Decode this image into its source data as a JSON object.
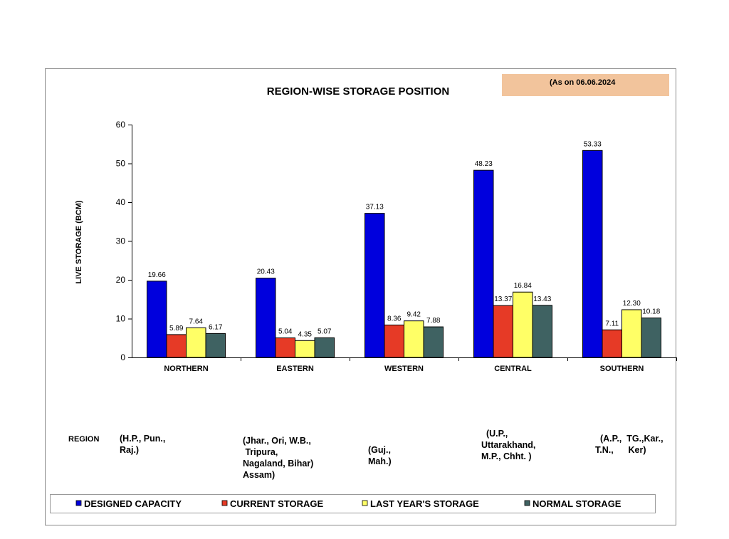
{
  "chart_data": {
    "type": "bar",
    "title": "REGION-WISE STORAGE POSITION",
    "date_note": "(As on 06.06.2024",
    "ylabel": "LIVE STORAGE (BCM)",
    "xlabel": "REGION",
    "ylim": [
      0,
      60
    ],
    "yticks": [
      "0",
      "10",
      "20",
      "30",
      "40",
      "50",
      "60"
    ],
    "grid": false,
    "legend_position": "bottom",
    "categories": [
      "NORTHERN",
      "EASTERN",
      "WESTERN",
      "CENTRAL",
      "SOUTHERN"
    ],
    "category_states": [
      [
        "(H.P., Pun.,",
        "Raj.)"
      ],
      [
        "(Jhar., Ori, W.B.,",
        " Tripura,",
        "Nagaland, Bihar)",
        "Assam)"
      ],
      [
        "(Guj.,",
        "Mah.)"
      ],
      [
        "  (U.P.,",
        "Uttarakhand,",
        "M.P., Chht. )"
      ],
      [
        "  (A.P.,  TG.,Kar.,",
        "T.N.,      Ker)"
      ]
    ],
    "series": [
      {
        "name": "DESIGNED CAPACITY",
        "color": "#0000dd",
        "values": [
          19.66,
          20.43,
          37.13,
          48.23,
          53.33
        ],
        "labels": [
          "19.66",
          "20.43",
          "37.13",
          "48.23",
          "53.33"
        ]
      },
      {
        "name": "CURRENT STORAGE",
        "color": "#e63a26",
        "values": [
          5.89,
          5.04,
          8.36,
          13.37,
          7.11
        ],
        "labels": [
          "5.89",
          "5.04",
          "8.36",
          "13.37",
          "7.11"
        ]
      },
      {
        "name": "LAST YEAR'S STORAGE",
        "color": "#ffff66",
        "values": [
          7.64,
          4.35,
          9.42,
          16.84,
          12.3
        ],
        "labels": [
          "7.64",
          "4.35",
          "9.42",
          "16.84",
          "12.30"
        ]
      },
      {
        "name": "NORMAL STORAGE",
        "color": "#3f6262",
        "values": [
          6.17,
          5.07,
          7.88,
          13.43,
          10.18
        ],
        "labels": [
          "6.17",
          "5.07",
          "7.88",
          "13.43",
          "10.18"
        ]
      }
    ],
    "note_box_color": "#f2c49c"
  }
}
